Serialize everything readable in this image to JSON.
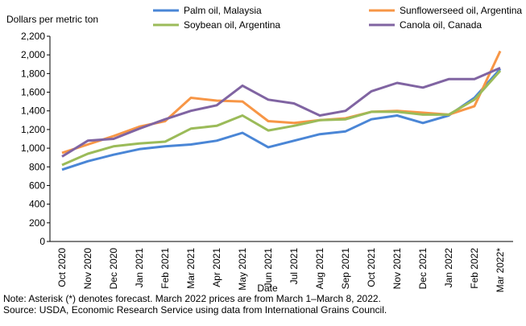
{
  "chart_data": {
    "type": "line",
    "ylabel": "Dollars per metric ton",
    "xlabel": "Date",
    "ylim": [
      0,
      2200
    ],
    "yticks": [
      "0",
      "200",
      "400",
      "600",
      "800",
      "1,000",
      "1,200",
      "1,400",
      "1,600",
      "1,800",
      "2,000",
      "2,200"
    ],
    "grid": false,
    "legend_position": "top",
    "categories": [
      "Oct 2020",
      "Nov 2020",
      "Dec 2020",
      "Jan 2021",
      "Feb 2021",
      "Mar 2021",
      "Apr 2021",
      "May 2021",
      "Jun 2021",
      "Jul 2021",
      "Aug 2021",
      "Sep 2021",
      "Oct 2021",
      "Nov 2021",
      "Dec 2021",
      "Jan 2022",
      "Feb 2022",
      "Mar 2022*"
    ],
    "series": [
      {
        "name": "Palm oil, Malaysia",
        "color": "#4a86d6",
        "values": [
          770,
          860,
          930,
          990,
          1020,
          1040,
          1080,
          1165,
          1010,
          1080,
          1150,
          1180,
          1310,
          1350,
          1270,
          1350,
          1540,
          1850
        ]
      },
      {
        "name": "Sunflowerseed oil, Argentina",
        "color": "#f79646",
        "values": [
          950,
          1040,
          1130,
          1230,
          1290,
          1540,
          1510,
          1500,
          1290,
          1270,
          1300,
          1320,
          1390,
          1400,
          1380,
          1360,
          1450,
          2040
        ]
      },
      {
        "name": "Soybean oil, Argentina",
        "color": "#9bbb59",
        "values": [
          820,
          940,
          1020,
          1050,
          1070,
          1210,
          1240,
          1350,
          1190,
          1240,
          1300,
          1310,
          1390,
          1390,
          1360,
          1360,
          1520,
          1830
        ]
      },
      {
        "name": "Canola oil, Canada",
        "color": "#8064a2",
        "values": [
          910,
          1080,
          1100,
          1210,
          1310,
          1400,
          1460,
          1670,
          1520,
          1480,
          1350,
          1400,
          1610,
          1700,
          1650,
          1740,
          1740,
          1860
        ]
      }
    ]
  },
  "notes": {
    "line1": "Note: Asterisk (*) denotes forecast. March 2022 prices are from March 1–March 8, 2022.",
    "line2": "Source: USDA, Economic Research Service using data from International Grains Council."
  }
}
